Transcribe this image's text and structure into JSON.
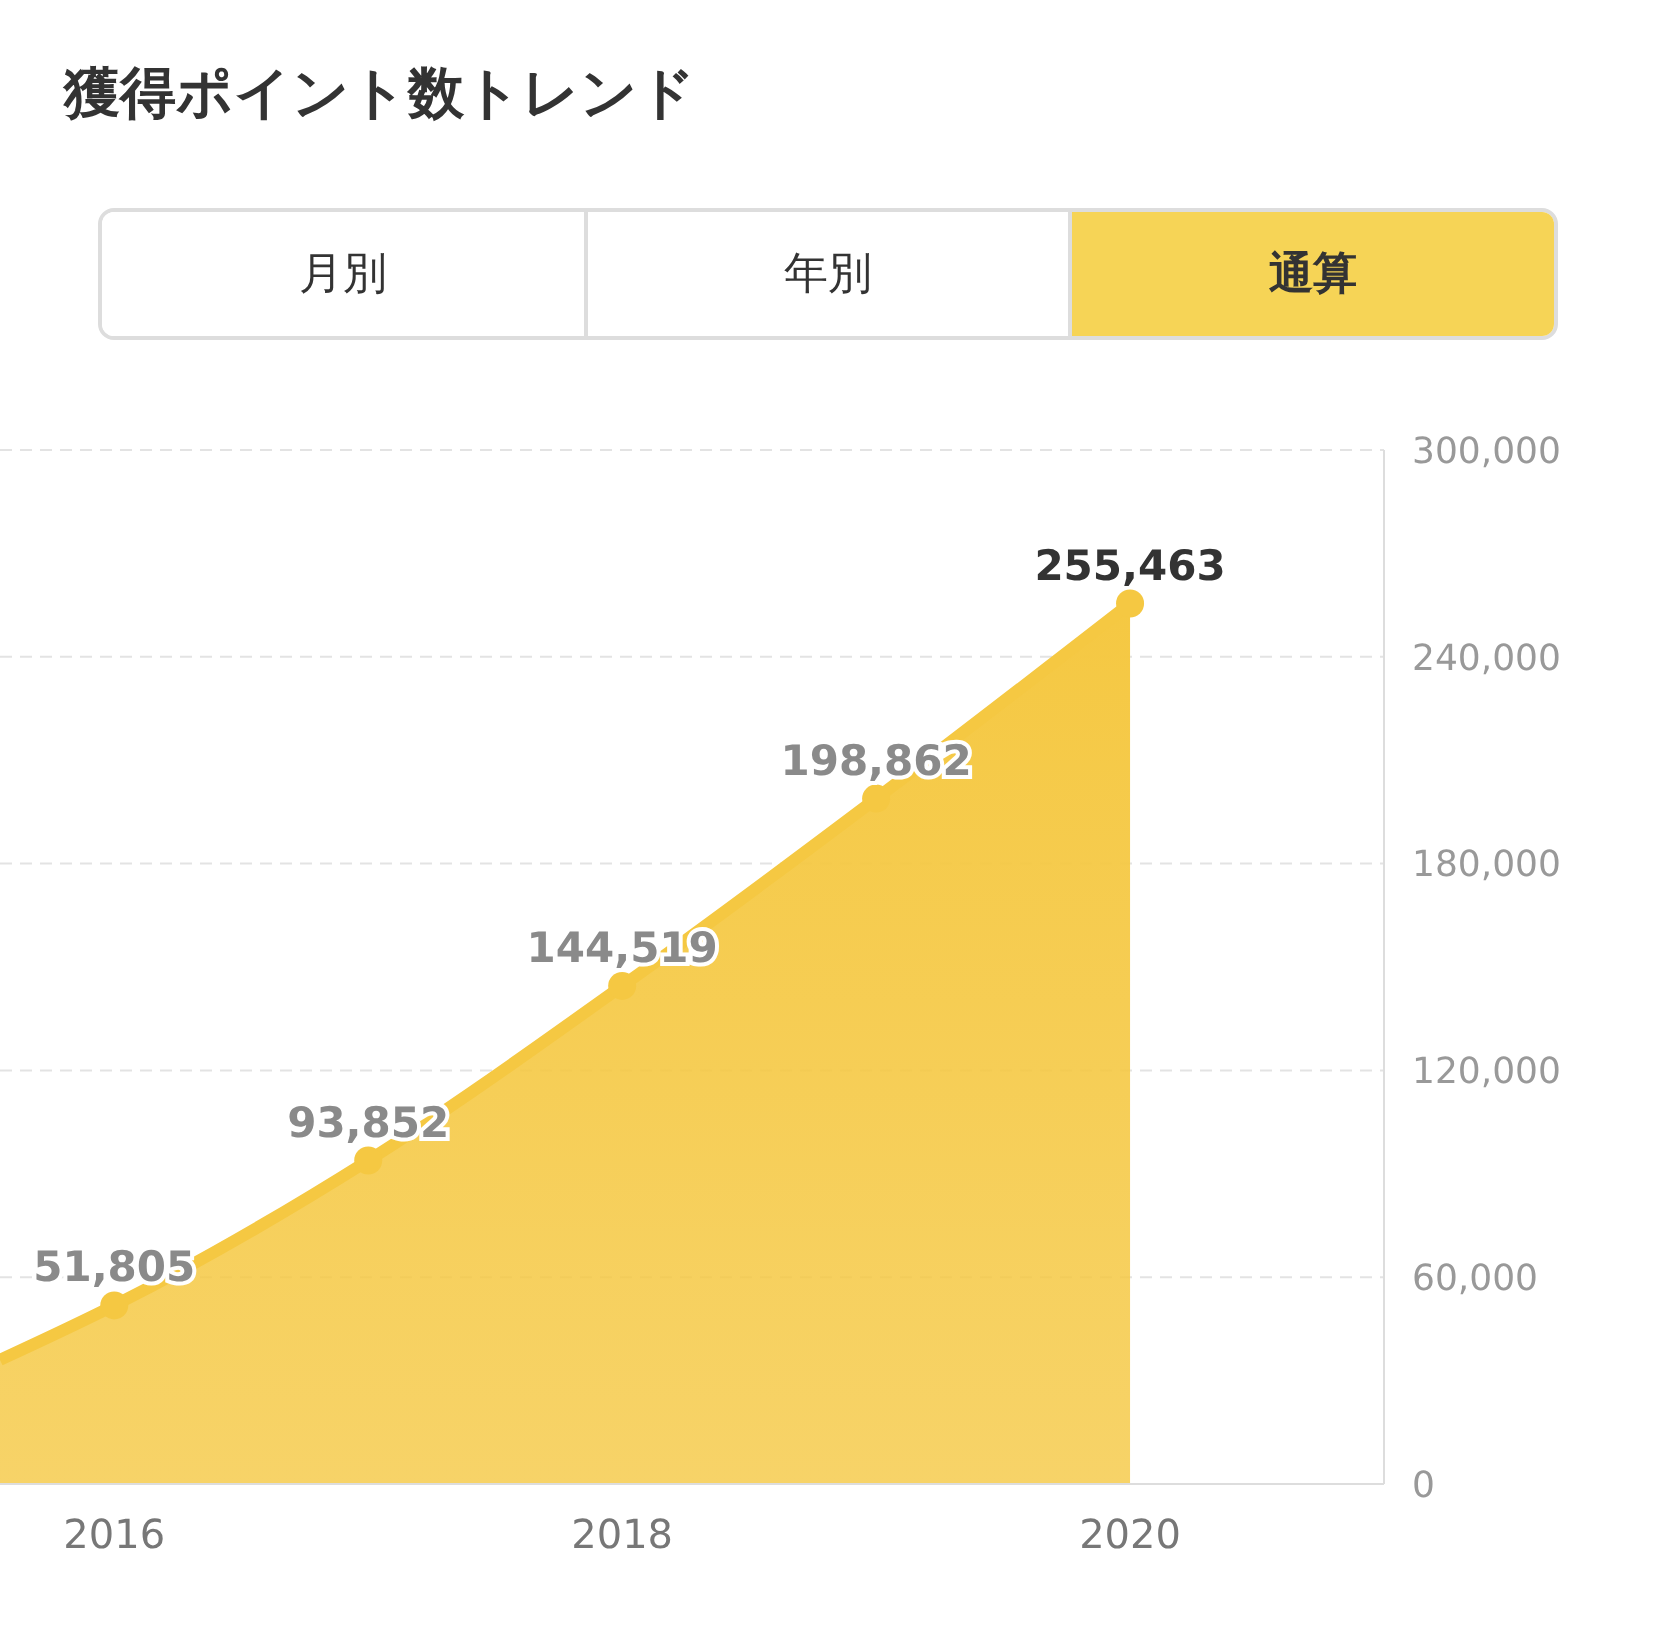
{
  "chart_data": {
    "type": "area",
    "title": "獲得ポイント数トレンド",
    "annotations": [
      "月別",
      "年別",
      "通算"
    ],
    "x": [
      2015.55,
      2016,
      2017,
      2018,
      2019,
      2020
    ],
    "series": [
      {
        "color": "#f5c842",
        "values": [
          36000,
          51805,
          93852,
          144519,
          198862,
          255463
        ],
        "value_labels": [
          null,
          "51,805",
          "93,852",
          "144,519",
          "198,862",
          "255,463"
        ]
      }
    ],
    "xlim": [
      2015.55,
      2021
    ],
    "xticks": [
      2016,
      2018,
      2020
    ],
    "ylim": [
      0,
      300000
    ],
    "yticks": [
      {
        "value": 0,
        "label": "0"
      },
      {
        "value": 60000,
        "label": "60,000"
      },
      {
        "value": 120000,
        "label": "120,000"
      },
      {
        "value": 180000,
        "label": "180,000"
      },
      {
        "value": 240000,
        "label": "240,000"
      },
      {
        "value": 300000,
        "label": "300,000"
      }
    ],
    "grid": "y",
    "marker": "circle",
    "legend": false
  }
}
